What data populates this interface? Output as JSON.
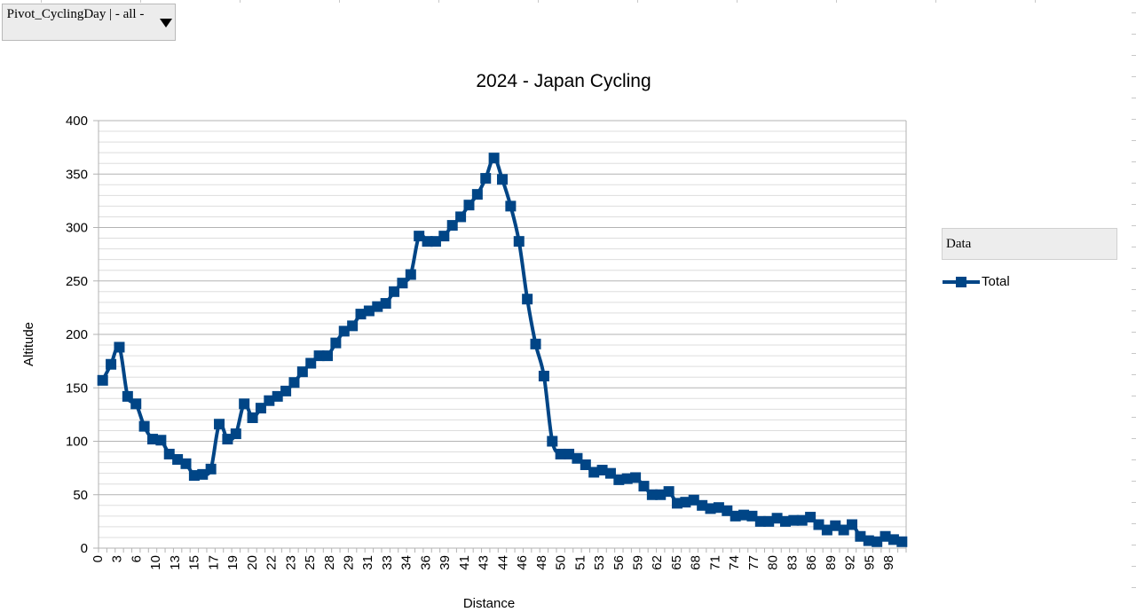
{
  "pivot_filter": {
    "label": "Pivot_CyclingDay | - all -"
  },
  "legend": {
    "title": "Data"
  },
  "colors": {
    "series": "#004586",
    "grid_major": "#b3b3b3",
    "grid_minor": "#dddddd",
    "axis_text": "#000000"
  },
  "chart_data": {
    "type": "line",
    "title": "2024 - Japan Cycling",
    "xlabel": "Distance",
    "ylabel": "Altitude",
    "ylim": [
      0,
      400
    ],
    "yticks": [
      0,
      50,
      100,
      150,
      200,
      250,
      300,
      350,
      400
    ],
    "grid": true,
    "minor_grid": true,
    "legend_position": "right",
    "x_tick_labels": [
      "0",
      "3",
      "6",
      "10",
      "13",
      "15",
      "17",
      "19",
      "20",
      "22",
      "23",
      "25",
      "28",
      "29",
      "31",
      "33",
      "34",
      "36",
      "39",
      "41",
      "43",
      "44",
      "46",
      "48",
      "50",
      "51",
      "53",
      "56",
      "59",
      "62",
      "65",
      "68",
      "71",
      "74",
      "77",
      "80",
      "83",
      "86",
      "89",
      "92",
      "95",
      "98"
    ],
    "series": [
      {
        "name": "Total",
        "marker": "square",
        "smooth": true,
        "values": [
          157,
          172,
          188,
          142,
          135,
          114,
          102,
          101,
          88,
          83,
          79,
          68,
          69,
          74,
          116,
          102,
          107,
          135,
          122,
          131,
          138,
          142,
          147,
          155,
          165,
          173,
          180,
          180,
          192,
          203,
          208,
          219,
          222,
          226,
          229,
          240,
          248,
          256,
          292,
          287,
          287,
          292,
          302,
          310,
          321,
          331,
          346,
          365,
          345,
          320,
          287,
          233,
          191,
          161,
          100,
          88,
          88,
          84,
          78,
          71,
          73,
          70,
          64,
          65,
          66,
          58,
          50,
          50,
          53,
          42,
          43,
          45,
          40,
          37,
          38,
          35,
          30,
          31,
          30,
          25,
          25,
          28,
          25,
          26,
          26,
          29,
          22,
          17,
          21,
          17,
          22,
          11,
          7,
          6,
          11,
          8,
          6
        ]
      }
    ]
  }
}
